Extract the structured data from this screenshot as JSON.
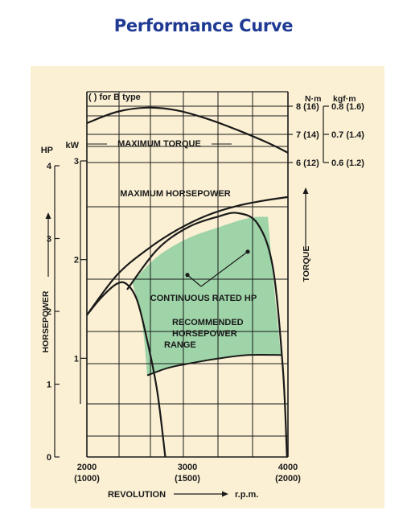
{
  "title": "Performance Curve",
  "colors": {
    "title": "#1f3a93",
    "panel": "#fbf0d4",
    "grid": "#1a1a1a",
    "region_fill": "#9ed4a8",
    "curve": "#1a1a1a"
  },
  "chart_data": {
    "type": "line",
    "title": "Performance Curve",
    "note": "(    ) for B type",
    "grid": true,
    "x_axis": {
      "label": "REVOLUTION",
      "unit": "r.p.m.",
      "range": [
        2000,
        4000
      ],
      "ticks": [
        {
          "value": 2000,
          "label": "2000",
          "sub": "(1000)"
        },
        {
          "value": 3000,
          "label": "3000",
          "sub": "(1500)"
        },
        {
          "value": 4000,
          "label": "4000",
          "sub": "(2000)"
        }
      ]
    },
    "hp_axis": {
      "label": "HORSEPOWER",
      "unit": "HP",
      "range": [
        0,
        4
      ],
      "ticks": [
        "0",
        "1",
        "2",
        "3",
        "4"
      ]
    },
    "kw_axis": {
      "unit": "kW",
      "range": [
        0,
        3
      ],
      "ticks": [
        "1",
        "2",
        "3"
      ]
    },
    "torque_axis": {
      "label": "TORQUE",
      "unit_nm": "N·m",
      "unit_kgf": "kgf·m",
      "ticks": [
        {
          "value": 8,
          "nm": "8 (16)",
          "kgf": "0.8 (1.6)"
        },
        {
          "value": 7,
          "nm": "7 (14)",
          "kgf": "0.7 (1.4)"
        },
        {
          "value": 6,
          "nm": "6 (12)",
          "kgf": "0.6 (1.2)"
        }
      ]
    },
    "series": [
      {
        "name": "MAXIMUM TORQUE",
        "axis": "torque",
        "points": [
          [
            2000,
            7.4
          ],
          [
            2300,
            7.8
          ],
          [
            2600,
            7.95
          ],
          [
            2900,
            7.85
          ],
          [
            3200,
            7.55
          ],
          [
            3500,
            7.15
          ],
          [
            3800,
            6.7
          ],
          [
            4000,
            6.35
          ]
        ]
      },
      {
        "name": "MAXIMUM HORSEPOWER",
        "axis": "hp",
        "points": [
          [
            2000,
            1.95
          ],
          [
            2300,
            2.5
          ],
          [
            2600,
            2.85
          ],
          [
            2900,
            3.12
          ],
          [
            3200,
            3.32
          ],
          [
            3500,
            3.45
          ],
          [
            3800,
            3.53
          ],
          [
            4000,
            3.57
          ]
        ]
      },
      {
        "name": "",
        "axis": "hp",
        "points": [
          [
            2000,
            1.95
          ],
          [
            2150,
            2.2
          ],
          [
            2300,
            2.38
          ],
          [
            2400,
            2.37
          ],
          [
            2500,
            2.15
          ],
          [
            2600,
            1.6
          ],
          [
            2700,
            0.9
          ],
          [
            2780,
            0
          ]
        ]
      },
      {
        "name": "",
        "axis": "hp",
        "points": [
          [
            2400,
            2.3
          ],
          [
            2700,
            2.85
          ],
          [
            3000,
            3.15
          ],
          [
            3300,
            3.3
          ],
          [
            3500,
            3.35
          ],
          [
            3700,
            3.2
          ],
          [
            3850,
            2.6
          ],
          [
            3950,
            1.2
          ],
          [
            3990,
            0
          ]
        ]
      }
    ],
    "regions": [
      {
        "name": "RECOMMENDED HORSEPOWER RANGE",
        "labels": [
          "RECOMMENDED",
          "HORSEPOWER",
          "RANGE"
        ],
        "upper": [
          [
            2450,
            2.4
          ],
          [
            2700,
            2.75
          ],
          [
            3000,
            3.0
          ],
          [
            3300,
            3.15
          ],
          [
            3600,
            3.28
          ],
          [
            3800,
            3.3
          ]
        ],
        "right": [
          [
            3800,
            3.3
          ],
          [
            3850,
            2.5
          ],
          [
            3900,
            1.8
          ],
          [
            3930,
            1.4
          ]
        ],
        "lower": [
          [
            2600,
            1.12
          ],
          [
            2800,
            1.22
          ],
          [
            3000,
            1.28
          ],
          [
            3300,
            1.35
          ],
          [
            3600,
            1.4
          ],
          [
            3930,
            1.4
          ]
        ],
        "left": [
          [
            2600,
            1.12
          ],
          [
            2570,
            1.6
          ],
          [
            2530,
            2.0
          ],
          [
            2450,
            2.4
          ]
        ]
      }
    ],
    "annotations": [
      {
        "text": "CONTINUOUS RATED HP",
        "targets": [
          [
            3000,
            2.5
          ],
          [
            3600,
            2.82
          ]
        ]
      }
    ]
  }
}
